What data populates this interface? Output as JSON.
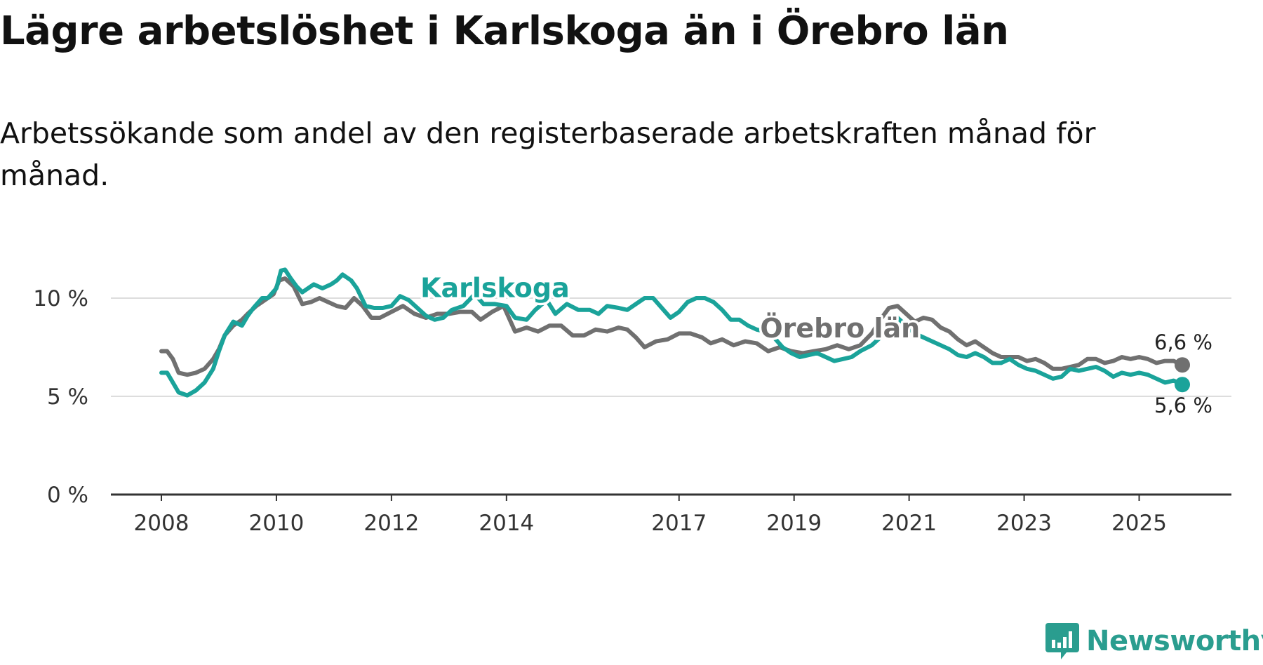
{
  "header": {
    "title": "Lägre arbetslöshet i Karlskoga än i Örebro län",
    "subtitle": "Arbetssökande som andel av den registerbaserade arbetskraften månad för månad."
  },
  "brand": {
    "name": "Newsworthy"
  },
  "colors": {
    "karlskoga": "#1aa39a",
    "orebro": "#707070",
    "grid": "#dddddd",
    "axis": "#333333"
  },
  "chart_data": {
    "type": "line",
    "title": "Lägre arbetslöshet i Karlskoga än i Örebro län",
    "subtitle": "Arbetssökande som andel av den registerbaserade arbetskraften månad för månad.",
    "xlabel": "",
    "ylabel": "",
    "xlim": [
      2008,
      2025.75
    ],
    "ylim": [
      0,
      10
    ],
    "y_ticks": [
      {
        "value": 0,
        "label": "0 %"
      },
      {
        "value": 5,
        "label": "5 %"
      },
      {
        "value": 10,
        "label": "10 %"
      }
    ],
    "x_ticks": [
      {
        "value": 2008,
        "label": "2008"
      },
      {
        "value": 2010,
        "label": "2010"
      },
      {
        "value": 2012,
        "label": "2012"
      },
      {
        "value": 2014,
        "label": "2014"
      },
      {
        "value": 2017,
        "label": "2017"
      },
      {
        "value": 2019,
        "label": "2019"
      },
      {
        "value": 2021,
        "label": "2021"
      },
      {
        "value": 2023,
        "label": "2023"
      },
      {
        "value": 2025,
        "label": "2025"
      }
    ],
    "grid": true,
    "legend": "inline",
    "series": [
      {
        "name": "Karlskoga",
        "color": "#1aa39a",
        "end_label": "5,6 %",
        "points": [
          [
            2008.0,
            6.2
          ],
          [
            2008.1,
            6.2
          ],
          [
            2008.2,
            5.7
          ],
          [
            2008.3,
            5.2
          ],
          [
            2008.45,
            5.05
          ],
          [
            2008.6,
            5.3
          ],
          [
            2008.75,
            5.7
          ],
          [
            2008.9,
            6.4
          ],
          [
            2009.0,
            7.3
          ],
          [
            2009.1,
            8.1
          ],
          [
            2009.25,
            8.8
          ],
          [
            2009.4,
            8.6
          ],
          [
            2009.5,
            9.1
          ],
          [
            2009.6,
            9.5
          ],
          [
            2009.75,
            10.0
          ],
          [
            2009.85,
            10.0
          ],
          [
            2010.0,
            10.5
          ],
          [
            2010.08,
            11.4
          ],
          [
            2010.15,
            11.45
          ],
          [
            2010.25,
            11.0
          ],
          [
            2010.35,
            10.6
          ],
          [
            2010.45,
            10.3
          ],
          [
            2010.55,
            10.5
          ],
          [
            2010.65,
            10.7
          ],
          [
            2010.8,
            10.5
          ],
          [
            2010.95,
            10.7
          ],
          [
            2011.05,
            10.9
          ],
          [
            2011.15,
            11.2
          ],
          [
            2011.3,
            10.9
          ],
          [
            2011.4,
            10.5
          ],
          [
            2011.55,
            9.6
          ],
          [
            2011.7,
            9.5
          ],
          [
            2011.85,
            9.5
          ],
          [
            2012.0,
            9.6
          ],
          [
            2012.15,
            10.1
          ],
          [
            2012.3,
            9.9
          ],
          [
            2012.45,
            9.5
          ],
          [
            2012.6,
            9.1
          ],
          [
            2012.75,
            8.9
          ],
          [
            2012.9,
            9.0
          ],
          [
            2013.05,
            9.4
          ],
          [
            2013.25,
            9.6
          ],
          [
            2013.45,
            10.2
          ],
          [
            2013.6,
            9.7
          ],
          [
            2013.8,
            9.7
          ],
          [
            2014.0,
            9.6
          ],
          [
            2014.15,
            9.0
          ],
          [
            2014.35,
            8.9
          ],
          [
            2014.5,
            9.4
          ],
          [
            2014.7,
            9.9
          ],
          [
            2014.85,
            9.2
          ],
          [
            2015.05,
            9.7
          ],
          [
            2015.25,
            9.4
          ],
          [
            2015.45,
            9.4
          ],
          [
            2015.6,
            9.2
          ],
          [
            2015.75,
            9.6
          ],
          [
            2015.95,
            9.5
          ],
          [
            2016.1,
            9.4
          ],
          [
            2016.25,
            9.7
          ],
          [
            2016.4,
            10.0
          ],
          [
            2016.55,
            10.0
          ],
          [
            2016.7,
            9.5
          ],
          [
            2016.85,
            9.0
          ],
          [
            2017.0,
            9.3
          ],
          [
            2017.15,
            9.8
          ],
          [
            2017.3,
            10.0
          ],
          [
            2017.45,
            10.0
          ],
          [
            2017.6,
            9.8
          ],
          [
            2017.75,
            9.4
          ],
          [
            2017.9,
            8.9
          ],
          [
            2018.05,
            8.9
          ],
          [
            2018.2,
            8.6
          ],
          [
            2018.35,
            8.4
          ],
          [
            2018.5,
            8.3
          ],
          [
            2018.65,
            8.0
          ],
          [
            2018.8,
            7.5
          ],
          [
            2018.95,
            7.2
          ],
          [
            2019.1,
            7.0
          ],
          [
            2019.25,
            7.1
          ],
          [
            2019.4,
            7.2
          ],
          [
            2019.55,
            7.0
          ],
          [
            2019.7,
            6.8
          ],
          [
            2019.85,
            6.9
          ],
          [
            2020.0,
            7.0
          ],
          [
            2020.15,
            7.3
          ],
          [
            2020.35,
            7.6
          ],
          [
            2020.5,
            8.0
          ],
          [
            2020.65,
            8.6
          ],
          [
            2020.8,
            9.0
          ],
          [
            2020.95,
            8.6
          ],
          [
            2021.1,
            8.2
          ],
          [
            2021.25,
            8.0
          ],
          [
            2021.4,
            7.8
          ],
          [
            2021.55,
            7.6
          ],
          [
            2021.7,
            7.4
          ],
          [
            2021.85,
            7.1
          ],
          [
            2022.0,
            7.0
          ],
          [
            2022.15,
            7.2
          ],
          [
            2022.3,
            7.0
          ],
          [
            2022.45,
            6.7
          ],
          [
            2022.6,
            6.7
          ],
          [
            2022.75,
            6.9
          ],
          [
            2022.9,
            6.6
          ],
          [
            2023.05,
            6.4
          ],
          [
            2023.2,
            6.3
          ],
          [
            2023.35,
            6.1
          ],
          [
            2023.5,
            5.9
          ],
          [
            2023.65,
            6.0
          ],
          [
            2023.8,
            6.4
          ],
          [
            2023.95,
            6.3
          ],
          [
            2024.1,
            6.4
          ],
          [
            2024.25,
            6.5
          ],
          [
            2024.4,
            6.3
          ],
          [
            2024.55,
            6.0
          ],
          [
            2024.7,
            6.2
          ],
          [
            2024.85,
            6.1
          ],
          [
            2025.0,
            6.2
          ],
          [
            2025.15,
            6.1
          ],
          [
            2025.3,
            5.9
          ],
          [
            2025.45,
            5.7
          ],
          [
            2025.6,
            5.8
          ],
          [
            2025.75,
            5.6
          ]
        ]
      },
      {
        "name": "Örebro län",
        "color": "#707070",
        "end_label": "6,6 %",
        "points": [
          [
            2008.0,
            7.3
          ],
          [
            2008.1,
            7.3
          ],
          [
            2008.2,
            6.9
          ],
          [
            2008.3,
            6.2
          ],
          [
            2008.45,
            6.1
          ],
          [
            2008.6,
            6.2
          ],
          [
            2008.75,
            6.4
          ],
          [
            2008.9,
            6.9
          ],
          [
            2009.0,
            7.4
          ],
          [
            2009.1,
            8.1
          ],
          [
            2009.25,
            8.6
          ],
          [
            2009.4,
            8.9
          ],
          [
            2009.5,
            9.2
          ],
          [
            2009.65,
            9.6
          ],
          [
            2009.8,
            9.9
          ],
          [
            2009.95,
            10.2
          ],
          [
            2010.05,
            10.9
          ],
          [
            2010.15,
            11.0
          ],
          [
            2010.3,
            10.6
          ],
          [
            2010.45,
            9.7
          ],
          [
            2010.6,
            9.8
          ],
          [
            2010.75,
            10.0
          ],
          [
            2010.9,
            9.8
          ],
          [
            2011.05,
            9.6
          ],
          [
            2011.2,
            9.5
          ],
          [
            2011.35,
            10.0
          ],
          [
            2011.5,
            9.6
          ],
          [
            2011.65,
            9.0
          ],
          [
            2011.8,
            9.0
          ],
          [
            2012.0,
            9.3
          ],
          [
            2012.2,
            9.6
          ],
          [
            2012.4,
            9.2
          ],
          [
            2012.6,
            9.0
          ],
          [
            2012.8,
            9.2
          ],
          [
            2013.0,
            9.2
          ],
          [
            2013.2,
            9.3
          ],
          [
            2013.4,
            9.3
          ],
          [
            2013.55,
            8.9
          ],
          [
            2013.75,
            9.3
          ],
          [
            2013.95,
            9.6
          ],
          [
            2014.15,
            8.3
          ],
          [
            2014.35,
            8.5
          ],
          [
            2014.55,
            8.3
          ],
          [
            2014.75,
            8.6
          ],
          [
            2014.95,
            8.6
          ],
          [
            2015.15,
            8.1
          ],
          [
            2015.35,
            8.1
          ],
          [
            2015.55,
            8.4
          ],
          [
            2015.75,
            8.3
          ],
          [
            2015.95,
            8.5
          ],
          [
            2016.1,
            8.4
          ],
          [
            2016.25,
            8.0
          ],
          [
            2016.4,
            7.5
          ],
          [
            2016.6,
            7.8
          ],
          [
            2016.8,
            7.9
          ],
          [
            2017.0,
            8.2
          ],
          [
            2017.2,
            8.2
          ],
          [
            2017.4,
            8.0
          ],
          [
            2017.55,
            7.7
          ],
          [
            2017.75,
            7.9
          ],
          [
            2017.95,
            7.6
          ],
          [
            2018.15,
            7.8
          ],
          [
            2018.35,
            7.7
          ],
          [
            2018.55,
            7.3
          ],
          [
            2018.75,
            7.5
          ],
          [
            2018.95,
            7.3
          ],
          [
            2019.15,
            7.2
          ],
          [
            2019.35,
            7.3
          ],
          [
            2019.55,
            7.4
          ],
          [
            2019.75,
            7.6
          ],
          [
            2019.95,
            7.4
          ],
          [
            2020.15,
            7.6
          ],
          [
            2020.35,
            8.2
          ],
          [
            2020.5,
            8.9
          ],
          [
            2020.65,
            9.5
          ],
          [
            2020.8,
            9.6
          ],
          [
            2020.95,
            9.2
          ],
          [
            2021.1,
            8.8
          ],
          [
            2021.25,
            9.0
          ],
          [
            2021.4,
            8.9
          ],
          [
            2021.55,
            8.5
          ],
          [
            2021.7,
            8.3
          ],
          [
            2021.85,
            7.9
          ],
          [
            2022.0,
            7.6
          ],
          [
            2022.15,
            7.8
          ],
          [
            2022.3,
            7.5
          ],
          [
            2022.45,
            7.2
          ],
          [
            2022.6,
            7.0
          ],
          [
            2022.75,
            7.0
          ],
          [
            2022.9,
            7.0
          ],
          [
            2023.05,
            6.8
          ],
          [
            2023.2,
            6.9
          ],
          [
            2023.35,
            6.7
          ],
          [
            2023.5,
            6.4
          ],
          [
            2023.65,
            6.4
          ],
          [
            2023.8,
            6.5
          ],
          [
            2023.95,
            6.6
          ],
          [
            2024.1,
            6.9
          ],
          [
            2024.25,
            6.9
          ],
          [
            2024.4,
            6.7
          ],
          [
            2024.55,
            6.8
          ],
          [
            2024.7,
            7.0
          ],
          [
            2024.85,
            6.9
          ],
          [
            2025.0,
            7.0
          ],
          [
            2025.15,
            6.9
          ],
          [
            2025.3,
            6.7
          ],
          [
            2025.45,
            6.8
          ],
          [
            2025.6,
            6.8
          ],
          [
            2025.75,
            6.6
          ]
        ]
      }
    ],
    "annotations": [
      {
        "text": "Karlskoga",
        "series": "Karlskoga",
        "x": 2013.8,
        "y": 10.05
      },
      {
        "text": "Örebro län",
        "series": "Örebro län",
        "x": 2019.8,
        "y": 8.0
      }
    ]
  }
}
